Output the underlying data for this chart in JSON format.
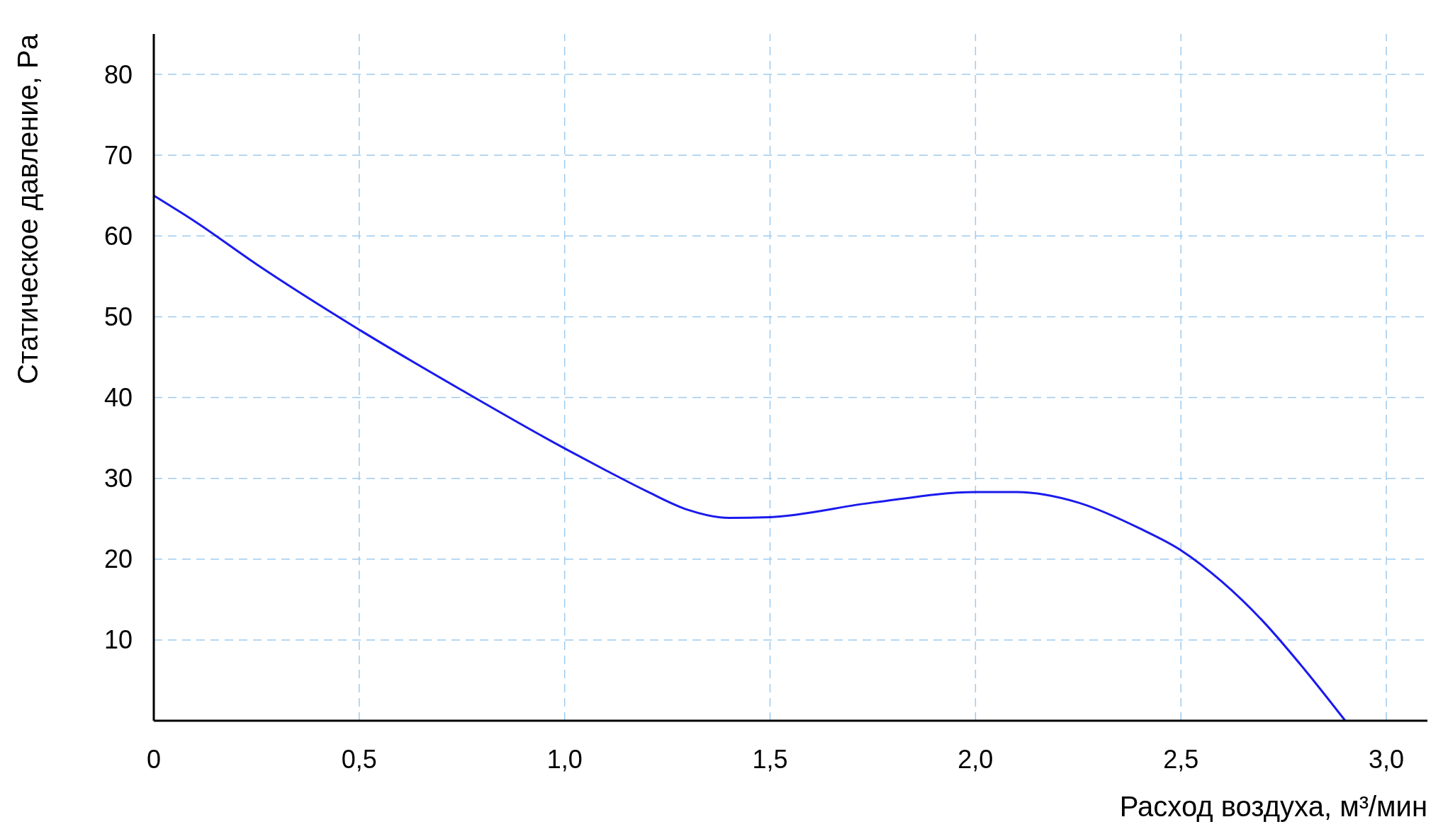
{
  "chart_data": {
    "type": "line",
    "xlabel": "Расход воздуха, м³/мин",
    "ylabel": "Статическое давление, Pa",
    "x": [
      0,
      0.1,
      0.25,
      0.5,
      0.75,
      1.0,
      1.1,
      1.2,
      1.3,
      1.4,
      1.5,
      1.75,
      2.0,
      2.1,
      2.25,
      2.4,
      2.5,
      2.6,
      2.7,
      2.8,
      2.9
    ],
    "series": [
      {
        "color": "#1a1aee",
        "values": [
          65,
          61.8,
          56.5,
          48.4,
          40.9,
          33.7,
          31,
          28.4,
          26.1,
          25.1,
          25.2,
          27,
          28.3,
          28.3,
          27,
          23.8,
          21.1,
          17.2,
          12.3,
          6.4,
          0
        ]
      }
    ],
    "xlim": [
      0,
      3.1
    ],
    "ylim": [
      0,
      85
    ],
    "xticks": [
      0,
      {
        "value": 0.5,
        "label": "0,5"
      },
      {
        "value": 1,
        "label": "1,0"
      },
      {
        "value": 1.5,
        "label": "1,5"
      },
      {
        "value": 2,
        "label": "2,0"
      },
      {
        "value": 2.5,
        "label": "2,5"
      },
      {
        "value": 3,
        "label": "3,0"
      }
    ],
    "yticks": [
      10,
      20,
      30,
      40,
      50,
      60,
      70,
      80
    ],
    "grid": true,
    "line_style": "solid",
    "marker": "none"
  }
}
